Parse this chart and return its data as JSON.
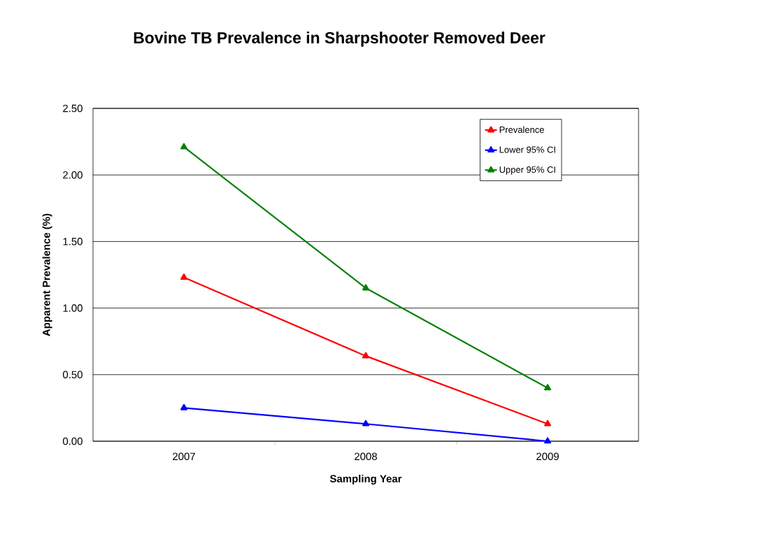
{
  "chart_data": {
    "type": "line",
    "title": "Bovine TB Prevalence in Sharpshooter Removed Deer",
    "xlabel": "Sampling Year",
    "ylabel": "Apparent Prevalence (%)",
    "categories": [
      "2007",
      "2008",
      "2009"
    ],
    "series": [
      {
        "name": "Prevalence",
        "color": "#ff0000",
        "values": [
          1.23,
          0.64,
          0.13
        ]
      },
      {
        "name": "Lower 95% CI",
        "color": "#0000ff",
        "values": [
          0.25,
          0.13,
          0.0
        ]
      },
      {
        "name": "Upper 95% CI",
        "color": "#008000",
        "values": [
          2.21,
          1.15,
          0.4
        ]
      }
    ],
    "ylim": [
      0,
      2.5
    ],
    "yticks": [
      {
        "value": 0,
        "label": "0.00"
      },
      {
        "value": 0.5,
        "label": "0.50"
      },
      {
        "value": 1.0,
        "label": "1.00"
      },
      {
        "value": 1.5,
        "label": "1.50"
      },
      {
        "value": 2.0,
        "label": "2.00"
      },
      {
        "value": 2.5,
        "label": "2.50"
      }
    ],
    "grid": "y",
    "legend": "top right",
    "marker": "triangle",
    "line_style": "solid"
  }
}
